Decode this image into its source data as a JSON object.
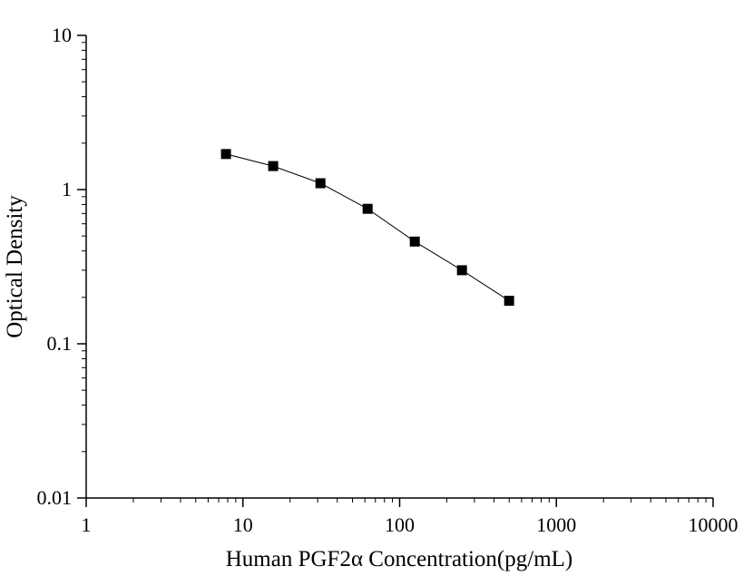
{
  "chart_data": {
    "type": "scatter",
    "title": "",
    "xlabel": "Human PGF2α Concentration(pg/mL)",
    "ylabel": "Optical Density",
    "xscale": "log",
    "yscale": "log",
    "xlim": [
      1,
      10000
    ],
    "ylim": [
      0.01,
      10
    ],
    "x_tick_labels": [
      "1",
      "10",
      "100",
      "1000",
      "10000"
    ],
    "y_tick_labels": [
      "0.01",
      "0.1",
      "1",
      "10"
    ],
    "grid": false,
    "legend": "none",
    "marker": "square",
    "line": true,
    "color": "#000000",
    "series": [
      {
        "x": [
          7.8,
          15.6,
          31.25,
          62.5,
          125,
          250,
          500
        ],
        "y": [
          1.7,
          1.42,
          1.1,
          0.75,
          0.46,
          0.3,
          0.19
        ]
      }
    ]
  }
}
